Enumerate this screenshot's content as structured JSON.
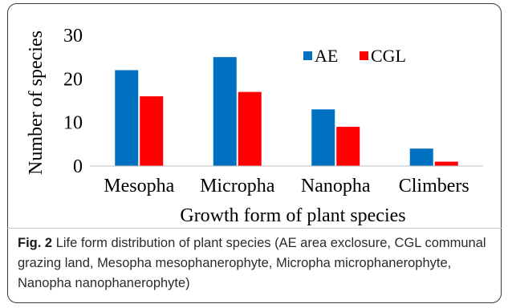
{
  "chart_data": {
    "type": "bar",
    "categories": [
      "Mesopha",
      "Micropha",
      "Nanopha",
      "Climbers"
    ],
    "series": [
      {
        "name": "AE",
        "values": [
          22,
          25,
          13,
          4
        ],
        "color": "#0070c0"
      },
      {
        "name": "CGL",
        "values": [
          16,
          17,
          9,
          1
        ],
        "color": "#ff0000"
      }
    ],
    "ylim": [
      0,
      30
    ],
    "yticks": [
      0,
      10,
      20,
      30
    ],
    "ylabel": "Number of species",
    "xlabel": "Growth form of plant species",
    "legend_position": "top-right",
    "grid": false
  },
  "caption": {
    "label": "Fig. 2",
    "text": "Life form distribution of plant species (AE area exclosure, CGL communal grazing land, Mesopha mesophanerophyte, Micropha microphanerophyte, Nanopha nanophanerophyte)"
  }
}
